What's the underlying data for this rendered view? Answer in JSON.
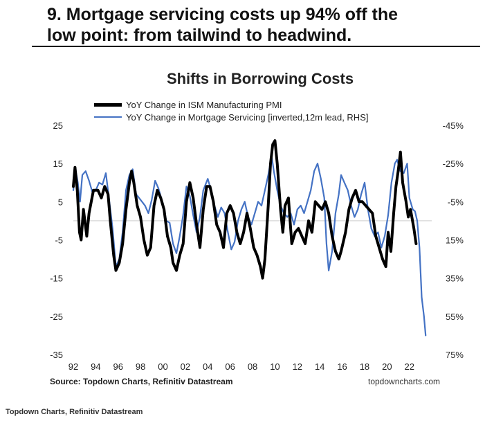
{
  "slide": {
    "title_line1": "9. Mortgage servicing costs up 94% off the",
    "title_line2": "low point: from tailwind to headwind."
  },
  "footer": {
    "source": "Source: Topdown Charts, Refinitiv Datastream",
    "brand": "topdowncharts.com",
    "caption": "Topdown Charts, Refinitiv Datastream"
  },
  "colors": {
    "pmi": "#000000",
    "mortgage": "#4472c4",
    "zero_line": "#cccccc"
  },
  "chart_data": {
    "type": "line",
    "title": "Shifts in Borrowing Costs",
    "legend_position": "top-left",
    "grid": false,
    "x_ticks": [
      "92",
      "94",
      "96",
      "98",
      "00",
      "02",
      "04",
      "06",
      "08",
      "10",
      "12",
      "14",
      "16",
      "18",
      "20",
      "22"
    ],
    "xlim": [
      1992,
      2023.5
    ],
    "y_left": {
      "ticks": [
        "25",
        "15",
        "5",
        "-5",
        "-15",
        "-25",
        "-35"
      ],
      "range": [
        -35,
        25
      ]
    },
    "y_right": {
      "ticks": [
        "-45%",
        "-25%",
        "-5%",
        "15%",
        "35%",
        "55%",
        "75%"
      ],
      "range": [
        -45,
        75
      ],
      "inverted": true
    },
    "series": [
      {
        "name": "YoY Change in ISM Manufacturing PMI",
        "axis": "left",
        "points": [
          [
            1992,
            9
          ],
          [
            1992.15,
            14
          ],
          [
            1992.35,
            8
          ],
          [
            1992.55,
            -3
          ],
          [
            1992.7,
            -5
          ],
          [
            1992.9,
            3
          ],
          [
            1993.2,
            -4
          ],
          [
            1993.4,
            2
          ],
          [
            1993.6,
            5
          ],
          [
            1993.8,
            8
          ],
          [
            1994.2,
            8
          ],
          [
            1994.5,
            6
          ],
          [
            1994.8,
            9
          ],
          [
            1995.1,
            7
          ],
          [
            1995.3,
            0
          ],
          [
            1995.6,
            -9
          ],
          [
            1995.8,
            -13
          ],
          [
            1996.1,
            -11
          ],
          [
            1996.4,
            -6
          ],
          [
            1996.7,
            3
          ],
          [
            1997,
            10
          ],
          [
            1997.2,
            13
          ],
          [
            1997.4,
            10
          ],
          [
            1997.7,
            4
          ],
          [
            1998,
            1
          ],
          [
            1998.3,
            -5
          ],
          [
            1998.6,
            -9
          ],
          [
            1998.9,
            -7
          ],
          [
            1999.2,
            4
          ],
          [
            1999.5,
            8
          ],
          [
            1999.8,
            6
          ],
          [
            2000.1,
            3
          ],
          [
            2000.4,
            -4
          ],
          [
            2000.7,
            -7
          ],
          [
            2000.9,
            -11
          ],
          [
            2001.2,
            -13
          ],
          [
            2001.5,
            -9
          ],
          [
            2001.8,
            -6
          ],
          [
            2002.1,
            5
          ],
          [
            2002.4,
            10
          ],
          [
            2002.7,
            6
          ],
          [
            2003,
            -1
          ],
          [
            2003.3,
            -7
          ],
          [
            2003.6,
            3
          ],
          [
            2003.9,
            9
          ],
          [
            2004.2,
            9
          ],
          [
            2004.5,
            5
          ],
          [
            2004.8,
            -1
          ],
          [
            2005.1,
            -3
          ],
          [
            2005.4,
            -7
          ],
          [
            2005.7,
            2
          ],
          [
            2006,
            4
          ],
          [
            2006.3,
            2
          ],
          [
            2006.6,
            -3
          ],
          [
            2006.9,
            -6
          ],
          [
            2007.2,
            -3
          ],
          [
            2007.5,
            2
          ],
          [
            2007.8,
            -2
          ],
          [
            2008.1,
            -7
          ],
          [
            2008.4,
            -9
          ],
          [
            2008.7,
            -12
          ],
          [
            2008.9,
            -15
          ],
          [
            2009.1,
            -10
          ],
          [
            2009.4,
            4
          ],
          [
            2009.6,
            15
          ],
          [
            2009.8,
            20
          ],
          [
            2010,
            21
          ],
          [
            2010.2,
            15
          ],
          [
            2010.5,
            3
          ],
          [
            2010.7,
            -3
          ],
          [
            2010.9,
            4
          ],
          [
            2011.2,
            6
          ],
          [
            2011.5,
            -6
          ],
          [
            2011.8,
            -3
          ],
          [
            2012.1,
            -2
          ],
          [
            2012.4,
            -4
          ],
          [
            2012.7,
            -6
          ],
          [
            2013,
            0
          ],
          [
            2013.3,
            -3
          ],
          [
            2013.6,
            5
          ],
          [
            2013.9,
            4
          ],
          [
            2014.2,
            3
          ],
          [
            2014.5,
            5
          ],
          [
            2014.8,
            2
          ],
          [
            2015.1,
            -4
          ],
          [
            2015.4,
            -8
          ],
          [
            2015.7,
            -10
          ],
          [
            2015.9,
            -8
          ],
          [
            2016.3,
            -3
          ],
          [
            2016.6,
            3
          ],
          [
            2016.9,
            6
          ],
          [
            2017.2,
            8
          ],
          [
            2017.5,
            5
          ],
          [
            2017.8,
            5
          ],
          [
            2018.1,
            4
          ],
          [
            2018.4,
            3
          ],
          [
            2018.7,
            2
          ],
          [
            2019,
            -4
          ],
          [
            2019.3,
            -7
          ],
          [
            2019.6,
            -10
          ],
          [
            2019.9,
            -12
          ],
          [
            2020.1,
            -3
          ],
          [
            2020.35,
            -8
          ],
          [
            2020.6,
            2
          ],
          [
            2020.8,
            9
          ],
          [
            2021,
            13
          ],
          [
            2021.2,
            18
          ],
          [
            2021.4,
            10
          ],
          [
            2021.7,
            5
          ],
          [
            2021.9,
            1
          ],
          [
            2022.1,
            3
          ],
          [
            2022.4,
            -2
          ],
          [
            2022.6,
            -6
          ]
        ]
      },
      {
        "name": "YoY Change in Mortgage Servicing [inverted,12m lead, RHS]",
        "axis": "right",
        "points": [
          [
            1992,
            -11
          ],
          [
            1992.2,
            -22
          ],
          [
            1992.4,
            -15
          ],
          [
            1992.6,
            -5
          ],
          [
            1992.8,
            -19
          ],
          [
            1993.1,
            -21
          ],
          [
            1993.4,
            -16
          ],
          [
            1993.7,
            -10
          ],
          [
            1994,
            -11
          ],
          [
            1994.3,
            -15
          ],
          [
            1994.6,
            -14
          ],
          [
            1994.9,
            -20
          ],
          [
            1995.2,
            -6
          ],
          [
            1995.5,
            9
          ],
          [
            1995.8,
            29
          ],
          [
            1996.1,
            25
          ],
          [
            1996.4,
            11
          ],
          [
            1996.7,
            -11
          ],
          [
            1997,
            -19
          ],
          [
            1997.3,
            -22
          ],
          [
            1997.6,
            -9
          ],
          [
            1998,
            -6
          ],
          [
            1998.4,
            -3
          ],
          [
            1998.7,
            1
          ],
          [
            1999,
            -6
          ],
          [
            1999.3,
            -16
          ],
          [
            1999.6,
            -12
          ],
          [
            2000,
            -4
          ],
          [
            2000.3,
            5
          ],
          [
            2000.6,
            6
          ],
          [
            2000.9,
            17
          ],
          [
            2001.2,
            22
          ],
          [
            2001.5,
            13
          ],
          [
            2001.8,
            2
          ],
          [
            2002.1,
            -13
          ],
          [
            2002.4,
            -8
          ],
          [
            2002.7,
            2
          ],
          [
            2003,
            11
          ],
          [
            2003.3,
            3
          ],
          [
            2003.6,
            -11
          ],
          [
            2004,
            -17
          ],
          [
            2004.3,
            -11
          ],
          [
            2004.6,
            -3
          ],
          [
            2004.9,
            3
          ],
          [
            2005.2,
            -2
          ],
          [
            2005.5,
            1
          ],
          [
            2005.8,
            11
          ],
          [
            2006.1,
            20
          ],
          [
            2006.4,
            16
          ],
          [
            2006.7,
            5
          ],
          [
            2007,
            -1
          ],
          [
            2007.3,
            -5
          ],
          [
            2007.6,
            3
          ],
          [
            2007.9,
            7
          ],
          [
            2008.2,
            1
          ],
          [
            2008.5,
            -5
          ],
          [
            2008.8,
            -3
          ],
          [
            2009.1,
            -11
          ],
          [
            2009.4,
            -19
          ],
          [
            2009.7,
            -29
          ],
          [
            2009.9,
            -21
          ],
          [
            2010.2,
            -11
          ],
          [
            2010.5,
            -3
          ],
          [
            2010.8,
            1
          ],
          [
            2011.1,
            3
          ],
          [
            2011.4,
            1
          ],
          [
            2011.7,
            7
          ],
          [
            2012,
            -1
          ],
          [
            2012.3,
            -3
          ],
          [
            2012.6,
            1
          ],
          [
            2012.9,
            -5
          ],
          [
            2013.2,
            -11
          ],
          [
            2013.5,
            -21
          ],
          [
            2013.8,
            -25
          ],
          [
            2014.1,
            -17
          ],
          [
            2014.4,
            -7
          ],
          [
            2014.6,
            17
          ],
          [
            2014.8,
            31
          ],
          [
            2015.1,
            21
          ],
          [
            2015.4,
            1
          ],
          [
            2015.7,
            -9
          ],
          [
            2015.9,
            -19
          ],
          [
            2016.2,
            -15
          ],
          [
            2016.5,
            -11
          ],
          [
            2016.8,
            -3
          ],
          [
            2017.1,
            3
          ],
          [
            2017.4,
            -1
          ],
          [
            2017.7,
            -9
          ],
          [
            2018,
            -15
          ],
          [
            2018.3,
            -1
          ],
          [
            2018.6,
            9
          ],
          [
            2018.9,
            13
          ],
          [
            2019.2,
            11
          ],
          [
            2019.5,
            19
          ],
          [
            2019.8,
            13
          ],
          [
            2020.1,
            2
          ],
          [
            2020.4,
            -15
          ],
          [
            2020.7,
            -25
          ],
          [
            2020.9,
            -27
          ],
          [
            2021.2,
            -21
          ],
          [
            2021.5,
            -20
          ],
          [
            2021.8,
            -25
          ],
          [
            2022,
            -7
          ],
          [
            2022.3,
            -1
          ],
          [
            2022.5,
            0
          ],
          [
            2022.7,
            5
          ],
          [
            2022.9,
            19
          ],
          [
            2023.1,
            45
          ],
          [
            2023.3,
            55
          ],
          [
            2023.45,
            65
          ]
        ]
      }
    ]
  }
}
